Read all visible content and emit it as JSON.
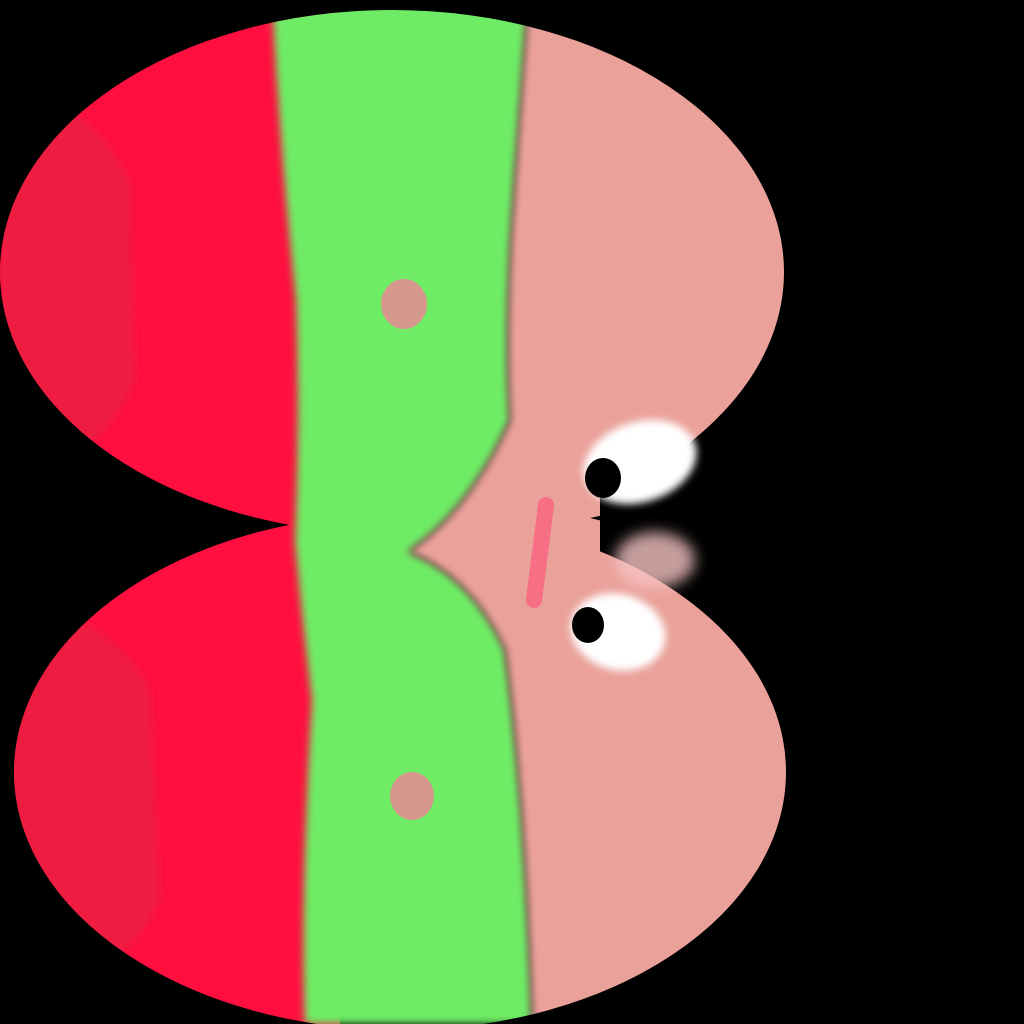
{
  "colors": {
    "background": "#000000",
    "band_red": "#fe0f3f",
    "band_red_shade": "#ef1a42",
    "band_green": "#6eec65",
    "band_pink": "#eaa19a",
    "spot": "#d6978d",
    "eye_white": "#ffffff",
    "pupil": "#000000",
    "mouth": "#f76f84",
    "blush": "#f7c5c5"
  },
  "icons": {
    "character": "striped-blob-character",
    "eye": "eye-icon",
    "mouth": "mouth-mark",
    "spot": "spot-mark"
  }
}
